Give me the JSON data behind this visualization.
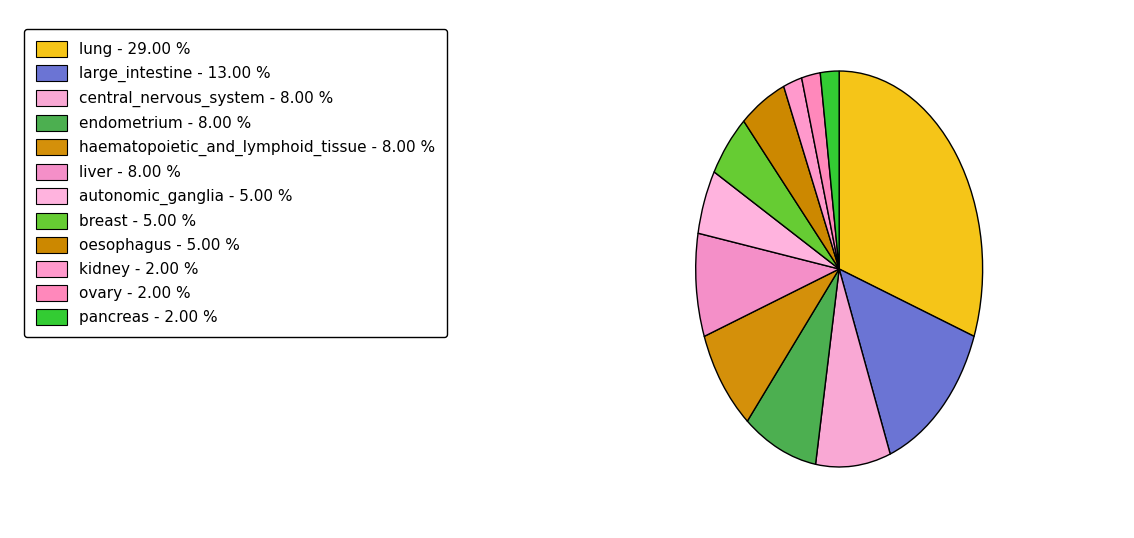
{
  "labels": [
    "lung",
    "large_intestine",
    "central_nervous_system",
    "endometrium",
    "haematopoietic_and_lymphoid_tissue",
    "liver",
    "autonomic_ganglia",
    "breast",
    "oesophagus",
    "kidney",
    "ovary",
    "pancreas"
  ],
  "values": [
    29,
    13,
    8,
    8,
    8,
    8,
    5,
    5,
    5,
    2,
    2,
    2
  ],
  "colors": [
    "#F5C518",
    "#6B74D4",
    "#F9A8D4",
    "#4CAF50",
    "#D4900A",
    "#F48FC8",
    "#FFB3DE",
    "#66CC33",
    "#CC8800",
    "#FF99CC",
    "#FF88BB",
    "#33CC33"
  ],
  "legend_labels": [
    "lung - 29.00 %",
    "large_intestine - 13.00 %",
    "central_nervous_system - 8.00 %",
    "endometrium - 8.00 %",
    "haematopoietic_and_lymphoid_tissue - 8.00 %",
    "liver - 8.00 %",
    "autonomic_ganglia - 5.00 %",
    "breast - 5.00 %",
    "oesophagus - 5.00 %",
    "kidney - 2.00 %",
    "ovary - 2.00 %",
    "pancreas - 2.00 %"
  ],
  "figure_width": 11.34,
  "figure_height": 5.38,
  "background_color": "#ffffff",
  "startangle": 90,
  "counterclock": true
}
